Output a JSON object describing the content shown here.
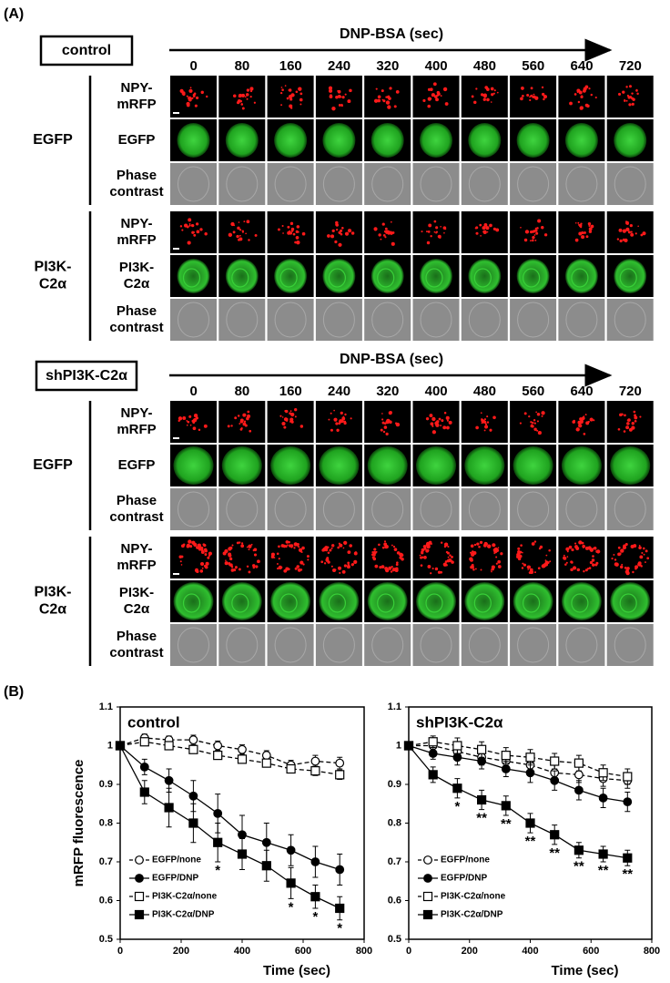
{
  "figure": {
    "panel_a_label": "(A)",
    "panel_b_label": "(B)",
    "blocks": [
      {
        "condition": "control",
        "axis_label": "DNP-BSA (sec)",
        "times": [
          0,
          80,
          160,
          240,
          320,
          400,
          480,
          560,
          640,
          720
        ],
        "groups": [
          {
            "name": [
              "EGFP"
            ],
            "rows": [
              [
                "NPY-",
                "mRFP"
              ],
              [
                "EGFP"
              ],
              [
                "Phase",
                "contrast"
              ]
            ]
          },
          {
            "name": [
              "PI3K-",
              "C2α"
            ],
            "rows": [
              [
                "NPY-",
                "mRFP"
              ],
              [
                "PI3K-",
                "C2α"
              ],
              [
                "Phase",
                "contrast"
              ]
            ]
          }
        ]
      },
      {
        "condition": "shPI3K-C2α",
        "axis_label": "DNP-BSA (sec)",
        "times": [
          0,
          80,
          160,
          240,
          320,
          400,
          480,
          560,
          640,
          720
        ],
        "groups": [
          {
            "name": [
              "EGFP"
            ],
            "rows": [
              [
                "NPY-",
                "mRFP"
              ],
              [
                "EGFP"
              ],
              [
                "Phase",
                "contrast"
              ]
            ]
          },
          {
            "name": [
              "PI3K-",
              "C2α"
            ],
            "rows": [
              [
                "NPY-",
                "mRFP"
              ],
              [
                "PI3K-",
                "C2α"
              ],
              [
                "Phase",
                "contrast"
              ]
            ]
          }
        ]
      }
    ]
  },
  "chart_data": [
    {
      "type": "line",
      "title": "control",
      "xlabel": "Time (sec)",
      "ylabel": "mRFP fluorescence",
      "x": [
        0,
        80,
        160,
        240,
        320,
        400,
        480,
        560,
        640,
        720
      ],
      "xlim": [
        0,
        800
      ],
      "xticks": [
        0,
        200,
        400,
        600,
        800
      ],
      "ylim": [
        0.5,
        1.1
      ],
      "yticks": [
        0.5,
        0.6,
        0.7,
        0.8,
        0.9,
        1,
        1.1
      ],
      "legend": "lower left",
      "series": [
        {
          "name": "EGFP/none",
          "color": "#000000",
          "marker": "circle",
          "filled": false,
          "dashed": true,
          "values": [
            1,
            1.02,
            1.015,
            1.015,
            1.0,
            0.99,
            0.975,
            0.95,
            0.96,
            0.955
          ],
          "errors": [
            0,
            0.01,
            0.01,
            0.012,
            0.012,
            0.012,
            0.012,
            0.012,
            0.015,
            0.015
          ]
        },
        {
          "name": "EGFP/DNP",
          "color": "#000000",
          "marker": "circle",
          "filled": true,
          "dashed": false,
          "values": [
            1,
            0.945,
            0.91,
            0.87,
            0.825,
            0.77,
            0.75,
            0.73,
            0.7,
            0.68
          ],
          "errors": [
            0,
            0.02,
            0.03,
            0.04,
            0.05,
            0.05,
            0.05,
            0.04,
            0.04,
            0.04
          ]
        },
        {
          "name": "PI3K-C2α/none",
          "color": "#000000",
          "marker": "square",
          "filled": false,
          "dashed": true,
          "values": [
            1,
            1.01,
            1.0,
            0.99,
            0.975,
            0.965,
            0.955,
            0.94,
            0.935,
            0.925
          ],
          "errors": [
            0,
            0.01,
            0.01,
            0.01,
            0.01,
            0.01,
            0.01,
            0.01,
            0.012,
            0.012
          ]
        },
        {
          "name": "PI3K-C2α/DNP",
          "color": "#000000",
          "marker": "square",
          "filled": true,
          "dashed": false,
          "values": [
            1,
            0.88,
            0.84,
            0.8,
            0.75,
            0.72,
            0.69,
            0.645,
            0.61,
            0.58
          ],
          "errors": [
            0,
            0.03,
            0.05,
            0.05,
            0.05,
            0.04,
            0.04,
            0.04,
            0.03,
            0.03
          ]
        }
      ],
      "annotations": [
        {
          "x": 320,
          "text": "*"
        },
        {
          "x": 560,
          "text": "*"
        },
        {
          "x": 640,
          "text": "*"
        },
        {
          "x": 720,
          "text": "*"
        }
      ]
    },
    {
      "type": "line",
      "title": "shPI3K-C2α",
      "xlabel": "Time (sec)",
      "x": [
        0,
        80,
        160,
        240,
        320,
        400,
        480,
        560,
        640,
        720
      ],
      "xlim": [
        0,
        800
      ],
      "xticks": [
        0,
        200,
        400,
        600,
        800
      ],
      "ylim": [
        0.5,
        1.1
      ],
      "yticks": [
        0.5,
        0.6,
        0.7,
        0.8,
        0.9,
        1,
        1.1
      ],
      "legend": "lower left",
      "series": [
        {
          "name": "EGFP/none",
          "color": "#000000",
          "marker": "circle",
          "filled": false,
          "dashed": true,
          "values": [
            1,
            1.0,
            0.985,
            0.97,
            0.96,
            0.95,
            0.93,
            0.925,
            0.915,
            0.91
          ],
          "errors": [
            0,
            0.015,
            0.02,
            0.02,
            0.02,
            0.02,
            0.02,
            0.02,
            0.02,
            0.02
          ]
        },
        {
          "name": "EGFP/DNP",
          "color": "#000000",
          "marker": "circle",
          "filled": true,
          "dashed": false,
          "values": [
            1,
            0.98,
            0.97,
            0.96,
            0.94,
            0.93,
            0.91,
            0.885,
            0.865,
            0.855
          ],
          "errors": [
            0,
            0.015,
            0.02,
            0.02,
            0.02,
            0.025,
            0.025,
            0.025,
            0.025,
            0.025
          ]
        },
        {
          "name": "PI3K-C2α/none",
          "color": "#000000",
          "marker": "square",
          "filled": false,
          "dashed": true,
          "values": [
            1,
            1.01,
            1.0,
            0.99,
            0.975,
            0.97,
            0.96,
            0.955,
            0.93,
            0.92
          ],
          "errors": [
            0,
            0.015,
            0.02,
            0.02,
            0.02,
            0.02,
            0.02,
            0.02,
            0.02,
            0.02
          ]
        },
        {
          "name": "PI3K-C2α/DNP",
          "color": "#000000",
          "marker": "square",
          "filled": true,
          "dashed": false,
          "values": [
            1,
            0.925,
            0.89,
            0.86,
            0.845,
            0.8,
            0.77,
            0.73,
            0.72,
            0.71
          ],
          "errors": [
            0,
            0.02,
            0.025,
            0.025,
            0.025,
            0.025,
            0.025,
            0.02,
            0.02,
            0.02
          ]
        }
      ],
      "annotations": [
        {
          "x": 160,
          "text": "*"
        },
        {
          "x": 240,
          "text": "**"
        },
        {
          "x": 320,
          "text": "**"
        },
        {
          "x": 400,
          "text": "**"
        },
        {
          "x": 480,
          "text": "**"
        },
        {
          "x": 560,
          "text": "**"
        },
        {
          "x": 640,
          "text": "**"
        },
        {
          "x": 720,
          "text": "**"
        }
      ]
    }
  ]
}
